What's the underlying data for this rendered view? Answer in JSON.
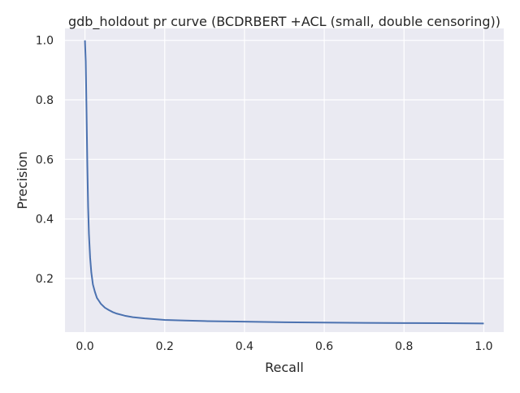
{
  "chart_data": {
    "type": "line",
    "title": "gdb_holdout pr curve (BCDRBERT +ACL (small, double censoring))",
    "xlabel": "Recall",
    "ylabel": "Precision",
    "xlim": [
      -0.05,
      1.05
    ],
    "ylim": [
      0.02,
      1.04
    ],
    "xticks": [
      0.0,
      0.2,
      0.4,
      0.6,
      0.8,
      1.0
    ],
    "xtick_labels": [
      "0.0",
      "0.2",
      "0.4",
      "0.6",
      "0.8",
      "1.0"
    ],
    "yticks": [
      0.2,
      0.4,
      0.6,
      0.8,
      1.0
    ],
    "ytick_labels": [
      "0.2",
      "0.4",
      "0.6",
      "0.8",
      "1.0"
    ],
    "grid": true,
    "background_color": "#eaeaf2",
    "grid_color": "#ffffff",
    "series": [
      {
        "color": "#4c72b0",
        "x": [
          0.0,
          0.002,
          0.004,
          0.006,
          0.008,
          0.01,
          0.013,
          0.016,
          0.02,
          0.025,
          0.03,
          0.035,
          0.04,
          0.05,
          0.06,
          0.07,
          0.08,
          0.1,
          0.12,
          0.15,
          0.2,
          0.25,
          0.3,
          0.4,
          0.5,
          0.6,
          0.7,
          0.8,
          0.9,
          1.0
        ],
        "y": [
          1.0,
          0.93,
          0.76,
          0.58,
          0.44,
          0.35,
          0.27,
          0.22,
          0.18,
          0.155,
          0.135,
          0.125,
          0.115,
          0.102,
          0.094,
          0.087,
          0.082,
          0.075,
          0.07,
          0.066,
          0.061,
          0.059,
          0.057,
          0.055,
          0.053,
          0.052,
          0.051,
          0.0505,
          0.05,
          0.049
        ]
      }
    ]
  }
}
